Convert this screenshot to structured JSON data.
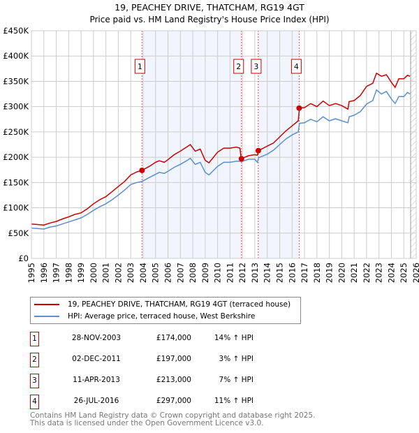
{
  "chart_data": {
    "type": "line",
    "title": "19, PEACHEY DRIVE, THATCHAM, RG19 4GT",
    "subtitle": "Price paid vs. HM Land Registry's House Price Index (HPI)",
    "xlabel": "",
    "ylabel": "",
    "xlim": [
      1995,
      2026
    ],
    "ylim": [
      0,
      450000
    ],
    "y_ticks": [
      0,
      50000,
      100000,
      150000,
      200000,
      250000,
      300000,
      350000,
      400000,
      450000
    ],
    "y_tick_labels": [
      "£0",
      "£50K",
      "£100K",
      "£150K",
      "£200K",
      "£250K",
      "£300K",
      "£350K",
      "£400K",
      "£450K"
    ],
    "x_ticks": [
      1995,
      1996,
      1997,
      1998,
      1999,
      2000,
      2001,
      2002,
      2003,
      2004,
      2005,
      2006,
      2007,
      2008,
      2009,
      2010,
      2011,
      2012,
      2013,
      2014,
      2015,
      2016,
      2017,
      2018,
      2019,
      2020,
      2021,
      2022,
      2023,
      2024,
      2025,
      2026
    ],
    "grid": true,
    "x": [
      1995.0,
      1995.5,
      1996.0,
      1996.5,
      1997.0,
      1997.5,
      1998.0,
      1998.5,
      1999.0,
      1999.5,
      2000.0,
      2000.5,
      2001.0,
      2001.5,
      2002.0,
      2002.5,
      2003.0,
      2003.5,
      2003.9,
      2004.5,
      2005.0,
      2005.3,
      2005.7,
      2006.0,
      2006.5,
      2007.0,
      2007.5,
      2007.8,
      2008.2,
      2008.6,
      2009.0,
      2009.3,
      2010.0,
      2010.5,
      2011.0,
      2011.5,
      2011.8,
      2011.9,
      2012.5,
      2013.0,
      2013.2,
      2013.3,
      2014.0,
      2014.5,
      2015.0,
      2015.5,
      2016.0,
      2016.5,
      2016.6,
      2017.0,
      2017.5,
      2018.0,
      2018.5,
      2019.0,
      2019.5,
      2020.0,
      2020.5,
      2020.6,
      2021.0,
      2021.5,
      2022.0,
      2022.5,
      2022.8,
      2023.2,
      2023.6,
      2024.0,
      2024.3,
      2024.6,
      2025.0,
      2025.3,
      2025.5
    ],
    "series": [
      {
        "name": "19, PEACHEY DRIVE, THATCHAM, RG19 4GT (terraced house)",
        "color": "#cc0000",
        "values": [
          68,
          67,
          66,
          70,
          73,
          78,
          82,
          87,
          90,
          98,
          108,
          116,
          122,
          132,
          142,
          152,
          165,
          171,
          174,
          182,
          190,
          193,
          190,
          195,
          205,
          212,
          220,
          225,
          212,
          216,
          194,
          189,
          210,
          218,
          218,
          220,
          218,
          197,
          203,
          205,
          204,
          213,
          222,
          228,
          240,
          252,
          262,
          272,
          297,
          298,
          306,
          300,
          311,
          302,
          306,
          302,
          295,
          310,
          312,
          322,
          340,
          346,
          366,
          360,
          363,
          348,
          338,
          355,
          355,
          362,
          360
        ]
      },
      {
        "name": "HPI: Average price, terraced house, West Berkshire",
        "color": "#5b8fd0",
        "values": [
          60,
          59,
          58,
          62,
          64,
          68,
          72,
          76,
          80,
          87,
          95,
          102,
          108,
          116,
          125,
          135,
          146,
          150,
          152,
          160,
          166,
          170,
          168,
          172,
          180,
          186,
          193,
          198,
          186,
          190,
          170,
          165,
          182,
          190,
          190,
          192,
          192,
          191,
          196,
          196,
          190,
          199,
          206,
          214,
          225,
          236,
          244,
          250,
          267,
          268,
          275,
          270,
          280,
          272,
          276,
          272,
          268,
          280,
          283,
          290,
          305,
          312,
          333,
          325,
          330,
          315,
          306,
          320,
          320,
          328,
          325
        ]
      }
    ],
    "value_unit": "thousand GBP",
    "shaded_ranges": [
      [
        2004.0,
        2011.92
      ],
      [
        2013.28,
        2016.57
      ]
    ],
    "future_hatch_from": 2025.55,
    "sales": [
      {
        "label": "1",
        "x": 2003.91,
        "value": 174000,
        "date": "28-NOV-2003",
        "price": "£174,000",
        "hpi": "14% ↑ HPI"
      },
      {
        "label": "2",
        "x": 2011.92,
        "value": 197000,
        "date": "02-DEC-2011",
        "price": "£197,000",
        "hpi": "3% ↑ HPI"
      },
      {
        "label": "3",
        "x": 2013.28,
        "value": 213000,
        "date": "11-APR-2013",
        "price": "£213,000",
        "hpi": "7% ↑ HPI"
      },
      {
        "label": "4",
        "x": 2016.57,
        "value": 297000,
        "date": "26-JUL-2016",
        "price": "£297,000",
        "hpi": "11% ↑ HPI"
      }
    ],
    "legend": [
      "19, PEACHEY DRIVE, THATCHAM, RG19 4GT (terraced house)",
      "HPI: Average price, terraced house, West Berkshire"
    ],
    "legend_placement": "below"
  },
  "footer": {
    "line1": "Contains HM Land Registry data © Crown copyright and database right 2025.",
    "line2": "This data is licensed under the Open Government Licence v3.0."
  }
}
